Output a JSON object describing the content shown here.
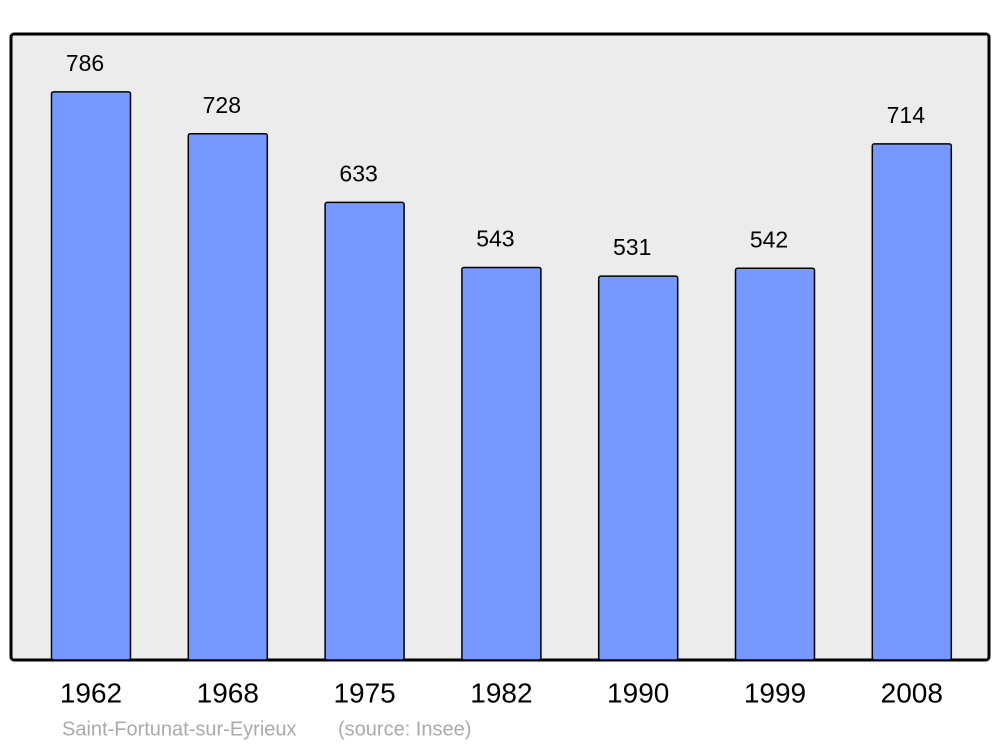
{
  "chart_data": {
    "type": "bar",
    "title": "Saint-Fortunat-sur-Eyrieux",
    "source": "(source: Insee)",
    "categories": [
      "1962",
      "1968",
      "1975",
      "1982",
      "1990",
      "1999",
      "2008"
    ],
    "values": [
      786,
      728,
      633,
      543,
      531,
      542,
      714
    ],
    "color": "#7799ff",
    "ylim": [
      0,
      866
    ]
  }
}
